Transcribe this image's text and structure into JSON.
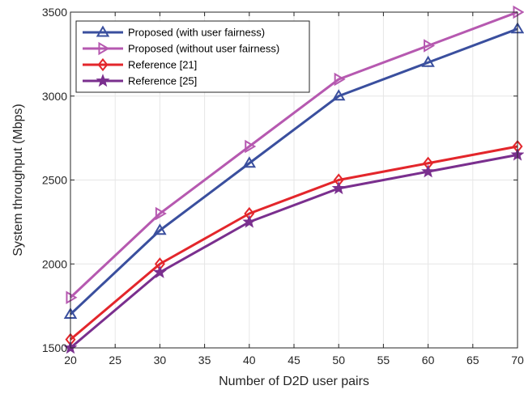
{
  "chart_data": {
    "type": "line",
    "xlabel": "Number of D2D user pairs",
    "ylabel": "System throughput (Mbps)",
    "xlim": [
      20,
      70
    ],
    "ylim": [
      1500,
      3500
    ],
    "xticks": [
      20,
      25,
      30,
      35,
      40,
      45,
      50,
      55,
      60,
      65,
      70
    ],
    "yticks": [
      1500,
      2000,
      2500,
      3000,
      3500
    ],
    "grid": true,
    "legend_position": "top-left",
    "x": [
      20,
      30,
      40,
      50,
      60,
      70
    ],
    "series": [
      {
        "name": "Proposed (with user fairness)",
        "values": [
          1700,
          2200,
          2600,
          3000,
          3200,
          3400
        ],
        "color": "#3a4f9e",
        "marker": "triangle-up-icon"
      },
      {
        "name": "Proposed (without user fairness)",
        "values": [
          1800,
          2300,
          2700,
          3100,
          3300,
          3500
        ],
        "color": "#b659b0",
        "marker": "triangle-right-icon"
      },
      {
        "name": "Reference [21]",
        "values": [
          1550,
          2000,
          2300,
          2500,
          2600,
          2700
        ],
        "color": "#e3262b",
        "marker": "diamond-icon"
      },
      {
        "name": "Reference [25]",
        "values": [
          1500,
          1950,
          2250,
          2450,
          2550,
          2650
        ],
        "color": "#7a2f8e",
        "marker": "star-icon"
      }
    ]
  }
}
